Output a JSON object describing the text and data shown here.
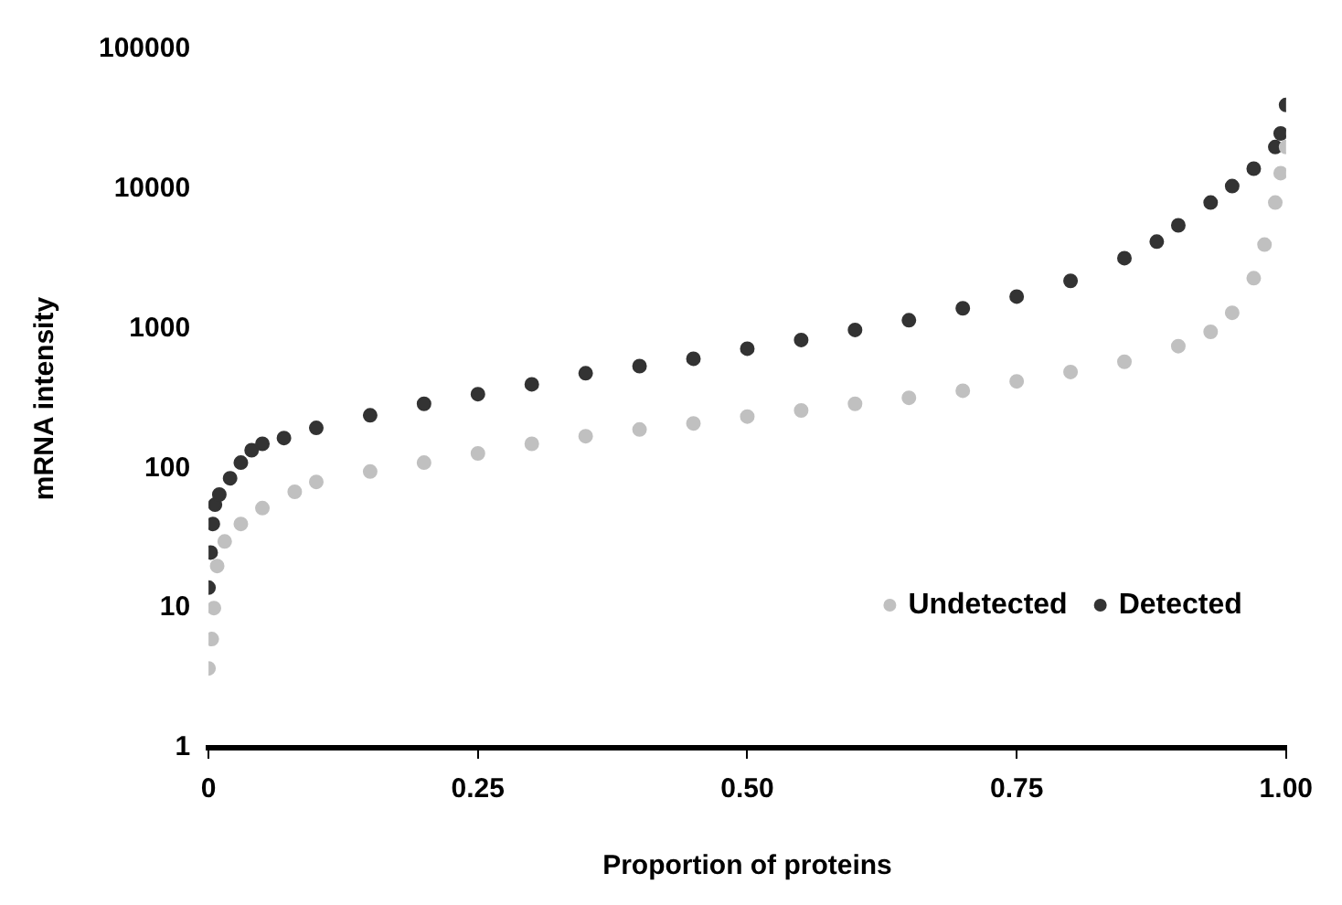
{
  "chart_data": {
    "type": "scatter",
    "xlabel": "Proportion of proteins",
    "ylabel": "mRNA intensity",
    "log": "y",
    "grid": false,
    "legend": "bottom right",
    "marker": "circle",
    "xlim": [
      0,
      1
    ],
    "xticks": [
      0,
      {
        "value": 0.25,
        "label": "0.25"
      },
      {
        "value": 0.5,
        "label": "0.50"
      },
      {
        "value": 0.75,
        "label": "0.75"
      },
      {
        "value": 1,
        "label": "1.00"
      }
    ],
    "ylim": [
      1,
      100000
    ],
    "yticks": [
      1,
      10,
      100,
      1000,
      10000,
      100000
    ],
    "series": [
      {
        "name": "Undetected",
        "color": "#c0c0c0",
        "x": [
          0,
          0.003,
          0.005,
          0.008,
          0.015,
          0.03,
          0.05,
          0.08,
          0.1,
          0.15,
          0.2,
          0.25,
          0.3,
          0.35,
          0.4,
          0.45,
          0.5,
          0.55,
          0.6,
          0.65,
          0.7,
          0.75,
          0.8,
          0.85,
          0.9,
          0.93,
          0.95,
          0.97,
          0.98,
          0.99,
          0.995,
          1
        ],
        "values": [
          3.7,
          6,
          10,
          20,
          30,
          40,
          52,
          68,
          80,
          95,
          110,
          128,
          150,
          170,
          190,
          210,
          235,
          260,
          290,
          320,
          360,
          420,
          490,
          580,
          750,
          950,
          1300,
          2300,
          4000,
          8000,
          13000,
          20000
        ]
      },
      {
        "name": "Detected",
        "color": "#333333",
        "x": [
          0,
          0.002,
          0.004,
          0.006,
          0.01,
          0.02,
          0.03,
          0.04,
          0.05,
          0.07,
          0.1,
          0.15,
          0.2,
          0.25,
          0.3,
          0.35,
          0.4,
          0.45,
          0.5,
          0.55,
          0.6,
          0.65,
          0.7,
          0.75,
          0.8,
          0.85,
          0.88,
          0.9,
          0.93,
          0.95,
          0.97,
          0.99,
          0.995,
          1
        ],
        "values": [
          14,
          25,
          40,
          55,
          65,
          85,
          110,
          135,
          150,
          165,
          195,
          240,
          290,
          340,
          400,
          480,
          540,
          610,
          720,
          830,
          980,
          1150,
          1400,
          1700,
          2200,
          3200,
          4200,
          5500,
          8000,
          10500,
          14000,
          20000,
          25000,
          40000
        ]
      }
    ]
  }
}
